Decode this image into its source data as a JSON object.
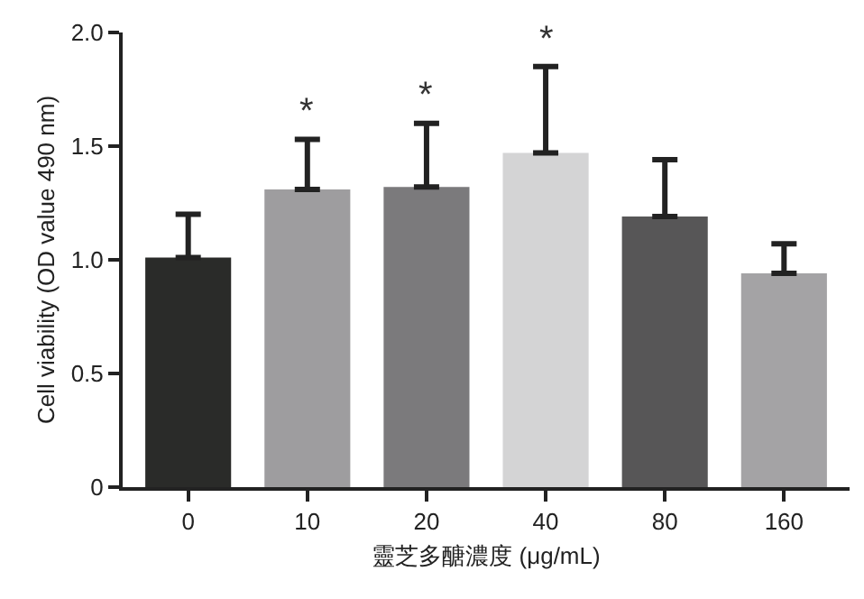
{
  "chart_data": {
    "type": "bar",
    "xlabel": "靈芝多醣濃度 (μg/mL)",
    "ylabel": "Cell viability (OD value 490 nm)",
    "categories": [
      "0",
      "10",
      "20",
      "40",
      "80",
      "160"
    ],
    "values": [
      1.01,
      1.31,
      1.32,
      1.47,
      1.19,
      0.94
    ],
    "colors": [
      "#2a2b29",
      "#9e9d9f",
      "#7b7a7c",
      "#d4d4d5",
      "#575657",
      "#a4a3a5"
    ],
    "errors": [
      [
        1.01,
        1.2
      ],
      [
        1.31,
        1.53
      ],
      [
        1.32,
        1.6
      ],
      [
        1.47,
        1.85
      ],
      [
        1.19,
        1.44
      ],
      [
        0.94,
        1.07
      ]
    ],
    "ylim": [
      0,
      2
    ],
    "yticks": [
      0,
      {
        "value": 0.5,
        "label": "0.5"
      },
      {
        "value": 1,
        "label": "1.0"
      },
      {
        "value": 1.5,
        "label": "1.5"
      },
      {
        "value": 2,
        "label": "2.0"
      }
    ],
    "annotations": [
      {
        "text": "*",
        "x": "10",
        "y": 1.53
      },
      {
        "text": "*",
        "x": "20",
        "y": 1.6
      },
      {
        "text": "*",
        "x": "40",
        "y": 1.85
      }
    ],
    "grid": false
  }
}
